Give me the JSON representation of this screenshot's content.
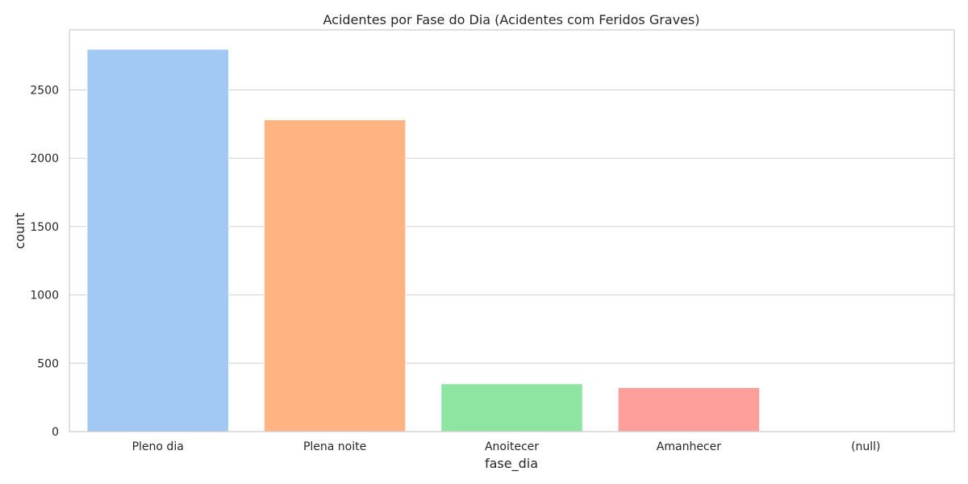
{
  "chart_data": {
    "type": "bar",
    "title": "Acidentes por Fase do Dia (Acidentes com Feridos Graves)",
    "xlabel": "fase_dia",
    "ylabel": "count",
    "categories": [
      "Pleno dia",
      "Plena noite",
      "Anoitecer",
      "Amanhecer",
      "(null)"
    ],
    "values": [
      2798,
      2282,
      350,
      322,
      3
    ],
    "ylim": [
      0,
      2940
    ],
    "yticks": [
      0,
      500,
      1000,
      1500,
      2000,
      2500
    ],
    "colors": [
      "#a1c9f4",
      "#ffb482",
      "#8de5a1",
      "#ff9f9b",
      "#d0bbff"
    ],
    "grid": true,
    "grid_axis": "y",
    "legend": "none"
  }
}
